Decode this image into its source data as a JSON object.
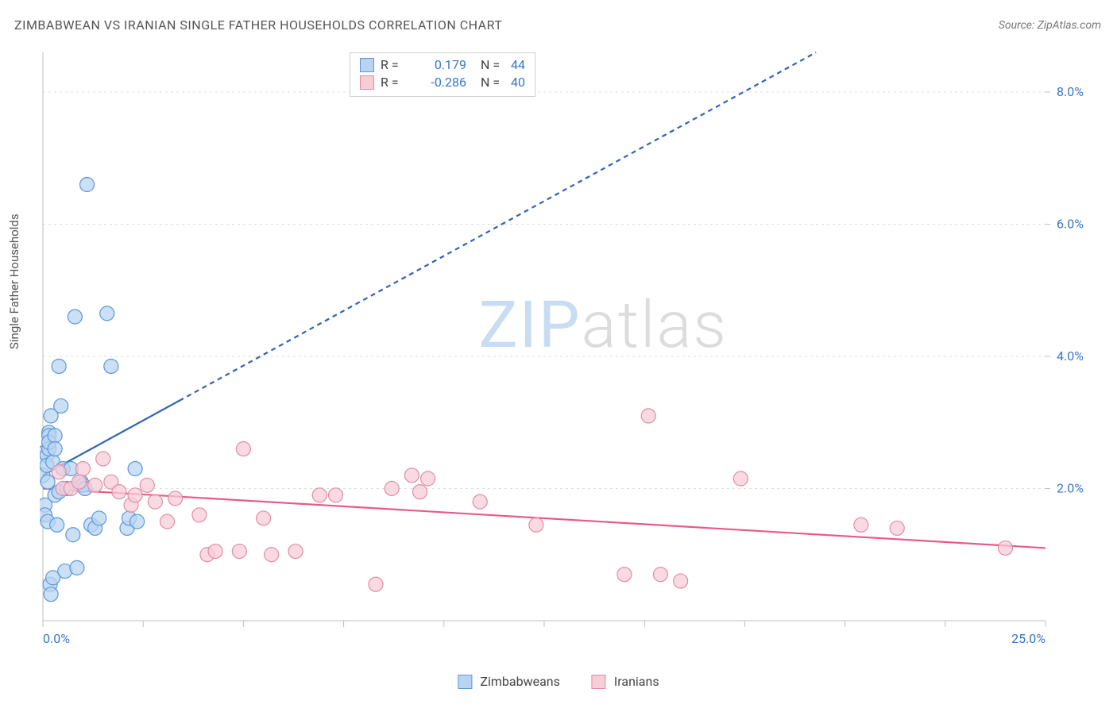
{
  "title": "ZIMBABWEAN VS IRANIAN SINGLE FATHER HOUSEHOLDS CORRELATION CHART",
  "source_prefix": "Source: ",
  "source_name": "ZipAtlas.com",
  "ylabel": "Single Father Households",
  "watermark": {
    "part1": "ZIP",
    "part2": "atlas"
  },
  "legend_top": {
    "rows": [
      {
        "swatch_fill": "#b9d4f1",
        "swatch_stroke": "#5a98da",
        "r_label": "R =",
        "r_value": "0.179",
        "r_color": "#3876c9",
        "n_label": "N =",
        "n_value": "44",
        "n_color": "#3876c9"
      },
      {
        "swatch_fill": "#f7cdd8",
        "swatch_stroke": "#e38ca4",
        "r_label": "R =",
        "r_value": "-0.286",
        "r_color": "#3876c9",
        "n_label": "N =",
        "n_value": "40",
        "n_color": "#3876c9"
      }
    ]
  },
  "legend_bottom": {
    "items": [
      {
        "swatch_fill": "#b9d4f1",
        "swatch_stroke": "#5a98da",
        "label": "Zimbabweans"
      },
      {
        "swatch_fill": "#f7cdd8",
        "swatch_stroke": "#e38ca4",
        "label": "Iranians"
      }
    ]
  },
  "chart": {
    "type": "scatter",
    "background_color": "#ffffff",
    "grid_color": "#dcdcdc",
    "axis_color": "#bfbfbf",
    "xlim": [
      0,
      25
    ],
    "ylim": [
      0,
      8.6
    ],
    "x_tick_step": 2.5,
    "y_ticks": [
      2,
      4,
      6,
      8
    ],
    "x_axis_labels": [
      {
        "value": 0,
        "text": "0.0%",
        "color": "#3876c9"
      },
      {
        "value": 25,
        "text": "25.0%",
        "color": "#3876c9"
      }
    ],
    "y_axis_labels": [
      {
        "value": 2,
        "text": "2.0%",
        "color": "#3876c9"
      },
      {
        "value": 4,
        "text": "4.0%",
        "color": "#3876c9"
      },
      {
        "value": 6,
        "text": "6.0%",
        "color": "#3876c9"
      },
      {
        "value": 8,
        "text": "8.0%",
        "color": "#3876c9"
      }
    ],
    "marker_radius": 9,
    "marker_stroke_width": 1.2,
    "series": [
      {
        "name": "Zimbabweans",
        "point_fill": "#b9d4f1",
        "point_stroke": "#5a98da",
        "point_opacity": 0.75,
        "line_color": "#2f63b7",
        "line_width": 2.2,
        "dash": "6,5",
        "trend": {
          "x1": 0,
          "y1": 2.2,
          "x2": 25,
          "y2": 10.5,
          "solid_until_x": 3.4
        },
        "points": [
          [
            0.0,
            2.2
          ],
          [
            0.05,
            2.55
          ],
          [
            0.05,
            1.75
          ],
          [
            0.05,
            1.6
          ],
          [
            0.1,
            2.5
          ],
          [
            0.1,
            2.35
          ],
          [
            0.12,
            2.1
          ],
          [
            0.12,
            1.5
          ],
          [
            0.15,
            2.85
          ],
          [
            0.15,
            2.8
          ],
          [
            0.15,
            2.6
          ],
          [
            0.15,
            2.7
          ],
          [
            0.18,
            0.55
          ],
          [
            0.2,
            3.1
          ],
          [
            0.2,
            0.4
          ],
          [
            0.25,
            2.4
          ],
          [
            0.25,
            0.65
          ],
          [
            0.3,
            2.8
          ],
          [
            0.3,
            2.6
          ],
          [
            0.3,
            1.9
          ],
          [
            0.35,
            1.45
          ],
          [
            0.4,
            1.95
          ],
          [
            0.4,
            3.85
          ],
          [
            0.45,
            3.25
          ],
          [
            0.5,
            2.3
          ],
          [
            0.55,
            0.75
          ],
          [
            0.6,
            2.0
          ],
          [
            0.7,
            2.3
          ],
          [
            0.75,
            1.3
          ],
          [
            0.8,
            4.6
          ],
          [
            0.85,
            0.8
          ],
          [
            0.95,
            2.1
          ],
          [
            1.0,
            2.05
          ],
          [
            1.05,
            2.0
          ],
          [
            1.1,
            6.6
          ],
          [
            1.2,
            1.45
          ],
          [
            1.3,
            1.4
          ],
          [
            1.4,
            1.55
          ],
          [
            1.6,
            4.65
          ],
          [
            1.7,
            3.85
          ],
          [
            2.1,
            1.4
          ],
          [
            2.15,
            1.55
          ],
          [
            2.3,
            2.3
          ],
          [
            2.35,
            1.5
          ]
        ]
      },
      {
        "name": "Iranians",
        "point_fill": "#f7cdd8",
        "point_stroke": "#e38ca4",
        "point_opacity": 0.75,
        "line_color": "#e75a88",
        "line_width": 2.2,
        "dash": "none",
        "trend": {
          "x1": 0,
          "y1": 2.0,
          "x2": 25,
          "y2": 1.1
        },
        "points": [
          [
            0.4,
            2.25
          ],
          [
            0.5,
            2.0
          ],
          [
            0.7,
            2.0
          ],
          [
            0.9,
            2.1
          ],
          [
            1.0,
            2.3
          ],
          [
            1.3,
            2.05
          ],
          [
            1.5,
            2.45
          ],
          [
            1.7,
            2.1
          ],
          [
            1.9,
            1.95
          ],
          [
            2.2,
            1.75
          ],
          [
            2.3,
            1.9
          ],
          [
            2.6,
            2.05
          ],
          [
            2.8,
            1.8
          ],
          [
            3.1,
            1.5
          ],
          [
            3.3,
            1.85
          ],
          [
            3.9,
            1.6
          ],
          [
            4.1,
            1.0
          ],
          [
            4.3,
            1.05
          ],
          [
            4.9,
            1.05
          ],
          [
            5.0,
            2.6
          ],
          [
            5.5,
            1.55
          ],
          [
            5.7,
            1.0
          ],
          [
            6.3,
            1.05
          ],
          [
            6.9,
            1.9
          ],
          [
            7.3,
            1.9
          ],
          [
            8.3,
            0.55
          ],
          [
            8.7,
            2.0
          ],
          [
            9.2,
            2.2
          ],
          [
            9.4,
            1.95
          ],
          [
            9.6,
            2.15
          ],
          [
            10.9,
            1.8
          ],
          [
            12.3,
            1.45
          ],
          [
            14.5,
            0.7
          ],
          [
            15.1,
            3.1
          ],
          [
            15.4,
            0.7
          ],
          [
            15.9,
            0.6
          ],
          [
            17.4,
            2.15
          ],
          [
            20.4,
            1.45
          ],
          [
            21.3,
            1.4
          ],
          [
            24.0,
            1.1
          ]
        ]
      }
    ]
  }
}
